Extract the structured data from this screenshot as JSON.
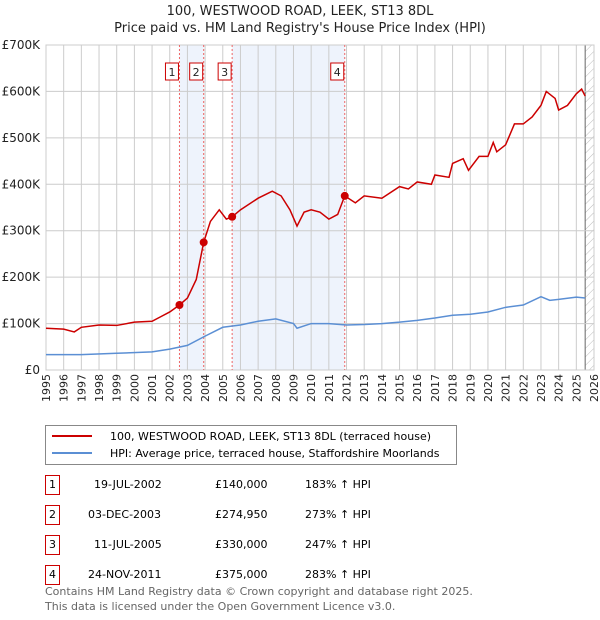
{
  "chart_data": {
    "type": "line",
    "title": "100, WESTWOOD ROAD, LEEK, ST13 8DL",
    "subtitle": "Price paid vs. HM Land Registry's House Price Index (HPI)",
    "xlim": [
      1995,
      2026
    ],
    "ylim": [
      0,
      700000
    ],
    "y_ticks": [
      {
        "v": 0,
        "label": "£0"
      },
      {
        "v": 100000,
        "label": "£100K"
      },
      {
        "v": 200000,
        "label": "£200K"
      },
      {
        "v": 300000,
        "label": "£300K"
      },
      {
        "v": 400000,
        "label": "£400K"
      },
      {
        "v": 500000,
        "label": "£500K"
      },
      {
        "v": 600000,
        "label": "£600K"
      },
      {
        "v": 700000,
        "label": "£700K"
      }
    ],
    "x_ticks": [
      "1995",
      "1996",
      "1997",
      "1998",
      "1999",
      "2000",
      "2001",
      "2002",
      "2003",
      "2004",
      "2005",
      "2006",
      "2007",
      "2008",
      "2009",
      "2010",
      "2011",
      "2012",
      "2013",
      "2014",
      "2015",
      "2016",
      "2017",
      "2018",
      "2019",
      "2020",
      "2021",
      "2022",
      "2023",
      "2024",
      "2025",
      "2026"
    ],
    "grid": true,
    "series": [
      {
        "name": "100, WESTWOOD ROAD, LEEK, ST13 8DL (terraced house)",
        "color": "#cc0000",
        "x": [
          1995,
          1996,
          1996.6,
          1997,
          1998,
          1999,
          2000,
          2001,
          2001.5,
          2002,
          2002.55,
          2003,
          2003.5,
          2003.92,
          2004.3,
          2004.8,
          2005.2,
          2005.53,
          2006,
          2007,
          2007.8,
          2008.3,
          2008.8,
          2009.2,
          2009.6,
          2010,
          2010.5,
          2011,
          2011.5,
          2011.9,
          2012.5,
          2013,
          2014,
          2015,
          2015.5,
          2016,
          2016.8,
          2017,
          2017.8,
          2018,
          2018.6,
          2018.9,
          2019.5,
          2020,
          2020.3,
          2020.5,
          2021,
          2021.5,
          2022,
          2022.5,
          2023,
          2023.3,
          2023.8,
          2024,
          2024.5,
          2025,
          2025.3,
          2025.5
        ],
        "y": [
          90,
          88,
          82,
          92,
          97,
          96,
          103,
          105,
          115,
          125,
          140,
          155,
          195,
          275,
          320,
          345,
          325,
          330,
          345,
          370,
          385,
          375,
          345,
          310,
          340,
          345,
          340,
          325,
          335,
          375,
          360,
          375,
          370,
          395,
          390,
          405,
          400,
          420,
          415,
          445,
          455,
          430,
          460,
          460,
          490,
          470,
          485,
          530,
          530,
          545,
          570,
          600,
          585,
          560,
          570,
          595,
          605,
          590
        ]
      },
      {
        "name": "HPI: Average price, terraced house, Staffordshire Moorlands",
        "color": "#5b8fd4",
        "x": [
          1995,
          1997,
          1999,
          2001,
          2002,
          2003,
          2004,
          2005,
          2006,
          2007,
          2008,
          2009,
          2009.2,
          2010,
          2011,
          2012,
          2013,
          2014,
          2015,
          2016,
          2017,
          2018,
          2019,
          2020,
          2021,
          2022,
          2023,
          2023.5,
          2024,
          2025,
          2025.5
        ],
        "y": [
          33,
          33,
          36,
          39,
          45,
          53,
          73,
          92,
          97,
          105,
          110,
          100,
          90,
          100,
          100,
          97,
          98,
          100,
          103,
          107,
          112,
          118,
          120,
          125,
          135,
          140,
          158,
          150,
          152,
          157,
          155
        ]
      }
    ],
    "sales": [
      {
        "n": "1",
        "x": 2002.55,
        "price": 140000,
        "date": "19-JUL-2002",
        "price_label": "£140,000",
        "hpi": "183% ↑ HPI"
      },
      {
        "n": "2",
        "x": 2003.92,
        "price": 274950,
        "date": "03-DEC-2003",
        "price_label": "£274,950",
        "hpi": "273% ↑ HPI"
      },
      {
        "n": "3",
        "x": 2005.53,
        "price": 330000,
        "date": "11-JUL-2005",
        "price_label": "£330,000",
        "hpi": "247% ↑ HPI"
      },
      {
        "n": "4",
        "x": 2011.9,
        "price": 375000,
        "date": "24-NOV-2011",
        "price_label": "£375,000",
        "hpi": "283% ↑ HPI"
      }
    ],
    "legend_position": "bottom"
  },
  "footer": {
    "line1": "Contains HM Land Registry data © Crown copyright and database right 2025.",
    "line2": "This data is licensed under the Open Government Licence v3.0."
  }
}
